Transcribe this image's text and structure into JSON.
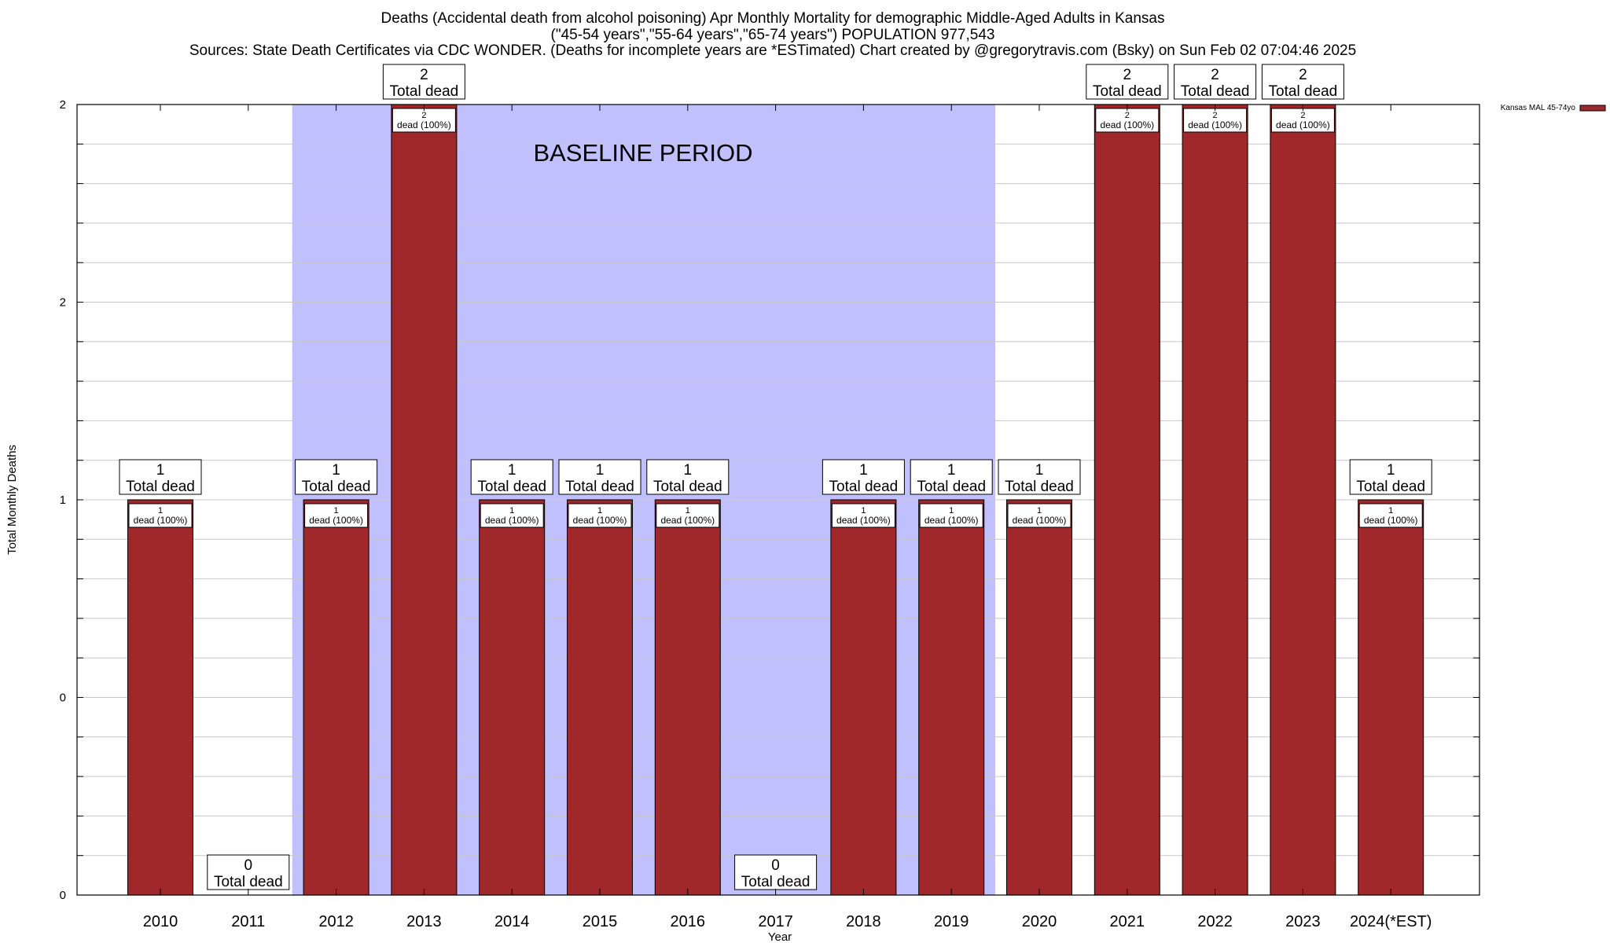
{
  "title": {
    "line1": "Deaths (Accidental death from alcohol poisoning) Apr Monthly Mortality for demographic Middle-Aged Adults in Kansas",
    "line2": "(\"45-54 years\",\"55-64 years\",\"65-74 years\") POPULATION 977,543",
    "line3": "Sources: State Death Certificates via CDC WONDER. (Deaths for incomplete years are *ESTimated)                Chart created by @gregorytravis.com (Bsky) on Sun Feb 02 07:04:46 2025"
  },
  "chart_data": {
    "type": "bar",
    "categories": [
      "2010",
      "2011",
      "2012",
      "2013",
      "2014",
      "2015",
      "2016",
      "2017",
      "2018",
      "2019",
      "2020",
      "2021",
      "2022",
      "2023",
      "2024(*EST)"
    ],
    "series": [
      {
        "name": "Kansas MAL 45-74yo",
        "values": [
          1,
          0,
          1,
          2,
          1,
          1,
          1,
          0,
          1,
          1,
          1,
          2,
          2,
          2,
          1
        ],
        "color": "#a0282b"
      }
    ],
    "total_labels": [
      "1\nTotal dead",
      "0\nTotal dead",
      "1\nTotal dead",
      "2\nTotal dead",
      "1\nTotal dead",
      "1\nTotal dead",
      "1\nTotal dead",
      "0\nTotal dead",
      "1\nTotal dead",
      "1\nTotal dead",
      "1\nTotal dead",
      "2\nTotal dead",
      "2\nTotal dead",
      "2\nTotal dead",
      "1\nTotal dead"
    ],
    "segment_labels": [
      "1\ndead (100%)",
      "",
      "1\ndead (100%)",
      "2\ndead (100%)",
      "1\ndead (100%)",
      "1\ndead (100%)",
      "1\ndead (100%)",
      "",
      "1\ndead (100%)",
      "1\ndead (100%)",
      "1\ndead (100%)",
      "2\ndead (100%)",
      "2\ndead (100%)",
      "2\ndead (100%)",
      "1\ndead (100%)"
    ],
    "y_tick_labels": [
      "0",
      "0",
      "1",
      "2",
      "2"
    ],
    "xlabel": "Year",
    "ylabel": "Total Monthly Deaths",
    "ylim": [
      0,
      2
    ],
    "grid": true,
    "legend_position": "top-right",
    "annotation": {
      "text": "BASELINE PERIOD",
      "from_category": "2012",
      "to_category": "2019",
      "color": "#c0c0ff"
    }
  }
}
